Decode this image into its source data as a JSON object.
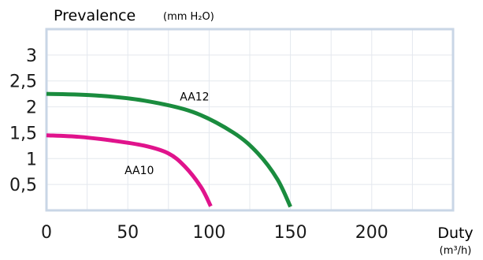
{
  "chart_data": {
    "type": "line",
    "ylabel": "Prevalence",
    "ylabel_unit": "(mm H₂O)",
    "xlabel": "Duty",
    "xlabel_unit": "(m³/h)",
    "xlim": [
      0,
      250
    ],
    "ylim": [
      0,
      3.5
    ],
    "x_ticks": [
      {
        "value": 0,
        "label": "0"
      },
      {
        "value": 50,
        "label": "50"
      },
      {
        "value": 100,
        "label": "100"
      },
      {
        "value": 150,
        "label": "150"
      },
      {
        "value": 200,
        "label": "200"
      }
    ],
    "y_ticks": [
      {
        "value": 0.5,
        "label": "0,5"
      },
      {
        "value": 1,
        "label": "1"
      },
      {
        "value": 1.5,
        "label": "1,5"
      },
      {
        "value": 2,
        "label": "2"
      },
      {
        "value": 2.5,
        "label": "2,5"
      },
      {
        "value": 3,
        "label": "3"
      }
    ],
    "grid": true,
    "series": [
      {
        "name": "AA10",
        "color": "#e0138c",
        "points": [
          [
            0,
            1.45
          ],
          [
            20,
            1.42
          ],
          [
            40,
            1.35
          ],
          [
            60,
            1.25
          ],
          [
            75,
            1.1
          ],
          [
            85,
            0.85
          ],
          [
            95,
            0.45
          ],
          [
            101,
            0.08
          ]
        ]
      },
      {
        "name": "AA12",
        "color": "#1a8c3e",
        "points": [
          [
            0,
            2.25
          ],
          [
            30,
            2.22
          ],
          [
            60,
            2.12
          ],
          [
            90,
            1.9
          ],
          [
            115,
            1.5
          ],
          [
            130,
            1.1
          ],
          [
            142,
            0.6
          ],
          [
            150,
            0.07
          ]
        ]
      }
    ],
    "annotations": [
      {
        "text": "AA12",
        "x": 82,
        "y": 2.12
      },
      {
        "text": "AA10",
        "x": 48,
        "y": 0.7
      }
    ]
  }
}
